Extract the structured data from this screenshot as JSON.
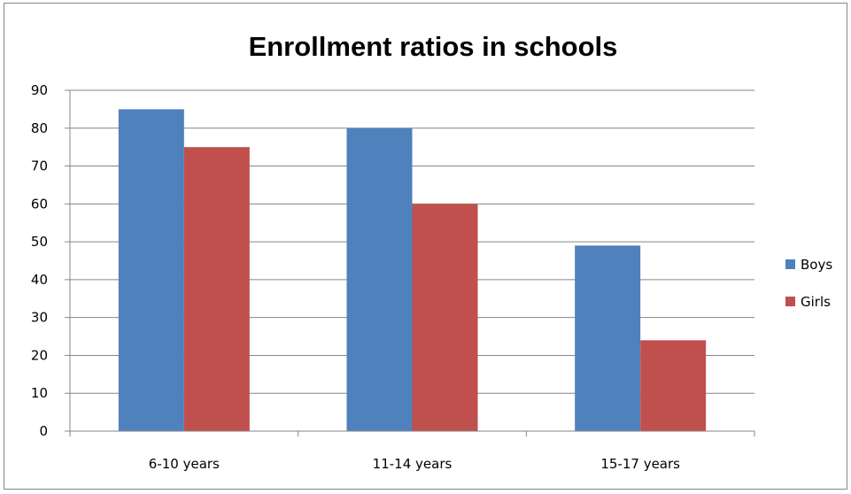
{
  "chart_data": {
    "type": "bar",
    "title": "Enrollment ratios in schools",
    "xlabel": "",
    "ylabel": "",
    "categories": [
      "6-10 years",
      "11-14 years",
      "15-17 years"
    ],
    "series": [
      {
        "name": "Boys",
        "values": [
          85,
          80,
          49
        ],
        "color": "#4F81BD"
      },
      {
        "name": "Girls",
        "values": [
          75,
          60,
          24
        ],
        "color": "#C0504D"
      }
    ],
    "ylim": [
      0,
      90
    ],
    "yticks": [
      "0",
      "10",
      "20",
      "30",
      "40",
      "50",
      "60",
      "70",
      "80",
      "90"
    ],
    "grid": true,
    "legend_position": "right"
  }
}
